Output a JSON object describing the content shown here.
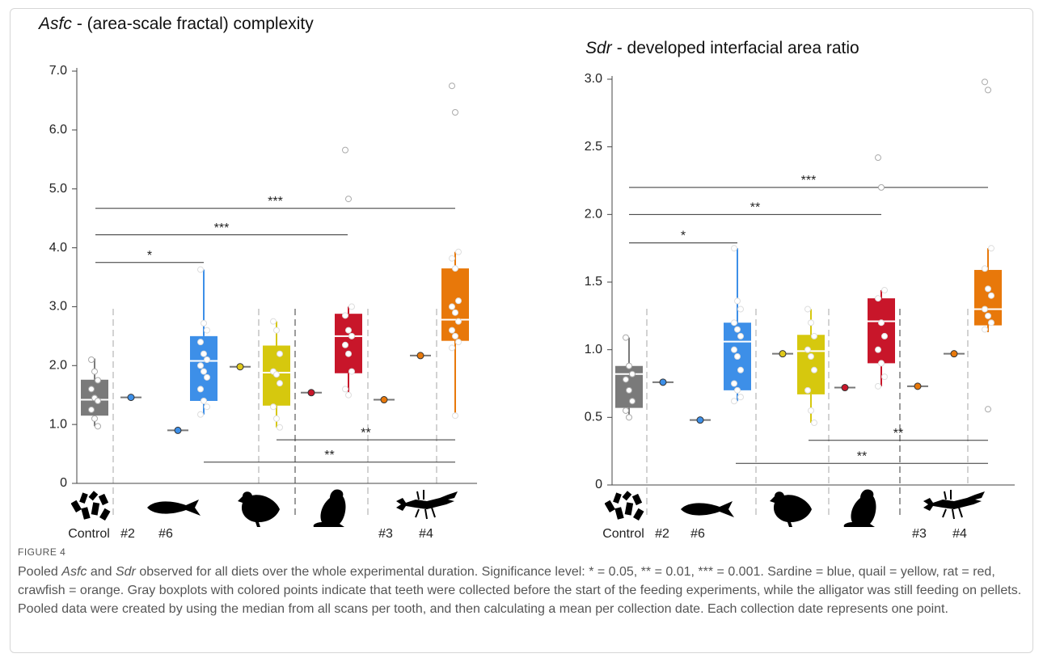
{
  "chart_data": [
    {
      "type": "box",
      "title_italic": "Asfc",
      "title": "- (area-scale fractal) complexity",
      "ylim": [
        0,
        7
      ],
      "yticks": [
        0,
        {
          "value": 1,
          "label": "1.0"
        },
        {
          "value": 2,
          "label": "2.0"
        },
        {
          "value": 3,
          "label": "3.0"
        },
        {
          "value": 4,
          "label": "4.0"
        },
        {
          "value": 5,
          "label": "5.0"
        },
        {
          "value": 6,
          "label": "6.0"
        },
        {
          "value": 7,
          "label": "7.0"
        }
      ],
      "groups": [
        {
          "label": "Control",
          "color": "#7a7a7a",
          "whislo": 0.97,
          "q1": 1.15,
          "median": 1.42,
          "q3": 1.76,
          "whishi": 2.12,
          "points": [
            2.1,
            1.9,
            1.75,
            1.6,
            1.45,
            1.4,
            1.25,
            1.1,
            0.97
          ]
        },
        {
          "label": "#2",
          "color": "#3d8fe8",
          "value": 1.46
        },
        {
          "label": "#6",
          "color": "#3d8fe8",
          "value": 0.9
        },
        {
          "color": "#3d8fe8",
          "whislo": 1.17,
          "q1": 1.4,
          "median": 2.08,
          "q3": 2.5,
          "whishi": 3.63,
          "points": [
            3.63,
            2.72,
            2.6,
            2.4,
            2.2,
            2.1,
            2.0,
            1.9,
            1.8,
            1.6,
            1.4,
            1.3,
            1.17
          ]
        },
        {
          "color": "#e0c91a",
          "value": 1.98
        },
        {
          "color": "#d6c80e",
          "whislo": 0.95,
          "q1": 1.32,
          "median": 1.88,
          "q3": 2.34,
          "whishi": 2.75,
          "points": [
            2.75,
            2.6,
            2.2,
            1.9,
            1.85,
            1.7,
            1.3,
            1.1,
            0.95
          ]
        },
        {
          "color": "#c8162a",
          "value": 1.54
        },
        {
          "color": "#c8162a",
          "whislo": 1.5,
          "q1": 1.87,
          "median": 2.5,
          "q3": 2.88,
          "whishi": 3.0,
          "points": [
            5.66,
            4.83,
            3.0,
            2.85,
            2.6,
            2.5,
            2.35,
            2.2,
            1.9,
            1.6,
            1.5
          ]
        },
        {
          "label": "#3",
          "color": "#e8780a",
          "value": 1.42
        },
        {
          "label": "#4",
          "color": "#e8780a",
          "value": 2.17
        },
        {
          "color": "#e8780a",
          "whislo": 1.15,
          "q1": 2.42,
          "median": 2.78,
          "q3": 3.65,
          "whishi": 3.93,
          "points": [
            6.75,
            6.3,
            3.93,
            3.82,
            3.65,
            3.1,
            3.0,
            2.9,
            2.75,
            2.6,
            2.5,
            2.4,
            2.3,
            1.15
          ]
        }
      ],
      "significance": [
        {
          "label": "*",
          "y": 3.75
        },
        {
          "label": "***",
          "y": 4.22
        },
        {
          "label": "***",
          "y": 4.67
        },
        {
          "label": "**",
          "y": 0.74
        },
        {
          "label": "**",
          "y": 0.36
        }
      ]
    },
    {
      "type": "box",
      "title_italic": "Sdr",
      "title": "- developed interfacial area ratio",
      "ylim": [
        0,
        3
      ],
      "yticks": [
        0,
        0.5,
        {
          "value": 1,
          "label": "1.0"
        },
        1.5,
        {
          "value": 2,
          "label": "2.0"
        },
        2.5,
        {
          "value": 3,
          "label": "3.0"
        }
      ],
      "groups": [
        {
          "label": "Control",
          "color": "#7a7a7a",
          "whislo": 0.5,
          "q1": 0.57,
          "median": 0.82,
          "q3": 0.88,
          "whishi": 1.09,
          "points": [
            1.09,
            0.88,
            0.82,
            0.78,
            0.7,
            0.62,
            0.55,
            0.5
          ]
        },
        {
          "label": "#2",
          "color": "#3d8fe8",
          "value": 0.76
        },
        {
          "label": "#6",
          "color": "#3d8fe8",
          "value": 0.48
        },
        {
          "color": "#3d8fe8",
          "whislo": 0.62,
          "q1": 0.7,
          "median": 1.06,
          "q3": 1.2,
          "whishi": 1.75,
          "points": [
            1.75,
            1.36,
            1.3,
            1.2,
            1.15,
            1.1,
            1.0,
            0.95,
            0.85,
            0.75,
            0.7,
            0.65,
            0.62
          ]
        },
        {
          "color": "#e0c91a",
          "value": 0.97
        },
        {
          "color": "#d6c80e",
          "whislo": 0.46,
          "q1": 0.67,
          "median": 0.99,
          "q3": 1.11,
          "whishi": 1.3,
          "points": [
            1.3,
            1.2,
            1.1,
            1.0,
            0.95,
            0.85,
            0.7,
            0.55,
            0.46
          ]
        },
        {
          "color": "#c8162a",
          "value": 0.72
        },
        {
          "color": "#c8162a",
          "whislo": 0.73,
          "q1": 0.9,
          "median": 1.21,
          "q3": 1.38,
          "whishi": 1.44,
          "points": [
            2.42,
            2.2,
            1.44,
            1.38,
            1.2,
            1.1,
            1.0,
            0.9,
            0.8,
            0.73
          ]
        },
        {
          "label": "#3",
          "color": "#e8780a",
          "value": 0.73
        },
        {
          "label": "#4",
          "color": "#e8780a",
          "value": 0.97
        },
        {
          "color": "#e8780a",
          "whislo": 1.13,
          "q1": 1.18,
          "median": 1.3,
          "q3": 1.59,
          "whishi": 1.75,
          "points": [
            2.98,
            2.92,
            1.75,
            1.6,
            1.45,
            1.4,
            1.3,
            1.25,
            1.2,
            1.15,
            0.56
          ]
        }
      ],
      "significance": [
        {
          "label": "*",
          "y": 1.79
        },
        {
          "label": "**",
          "y": 2.0
        },
        {
          "label": "***",
          "y": 2.2
        },
        {
          "label": "**",
          "y": 0.33
        },
        {
          "label": "**",
          "y": 0.16
        }
      ]
    }
  ],
  "caption": {
    "label": "FIGURE 4",
    "parts": [
      "Pooled ",
      "Asfc",
      " and ",
      "Sdr",
      " observed for all diets over the whole experimental duration. Significance level: * = 0.05, ** = 0.01, *** = 0.001. Sardine = blue, quail = yellow, rat = red, crawfish = orange. Gray boxplots with colored points indicate that teeth were collected before the start of the feeding experiments, while the alligator was still feeding on pellets. Pooled data were created by using the median from all scans per tooth, and then calculating a mean per collection date. Each collection date represents one point."
    ]
  }
}
